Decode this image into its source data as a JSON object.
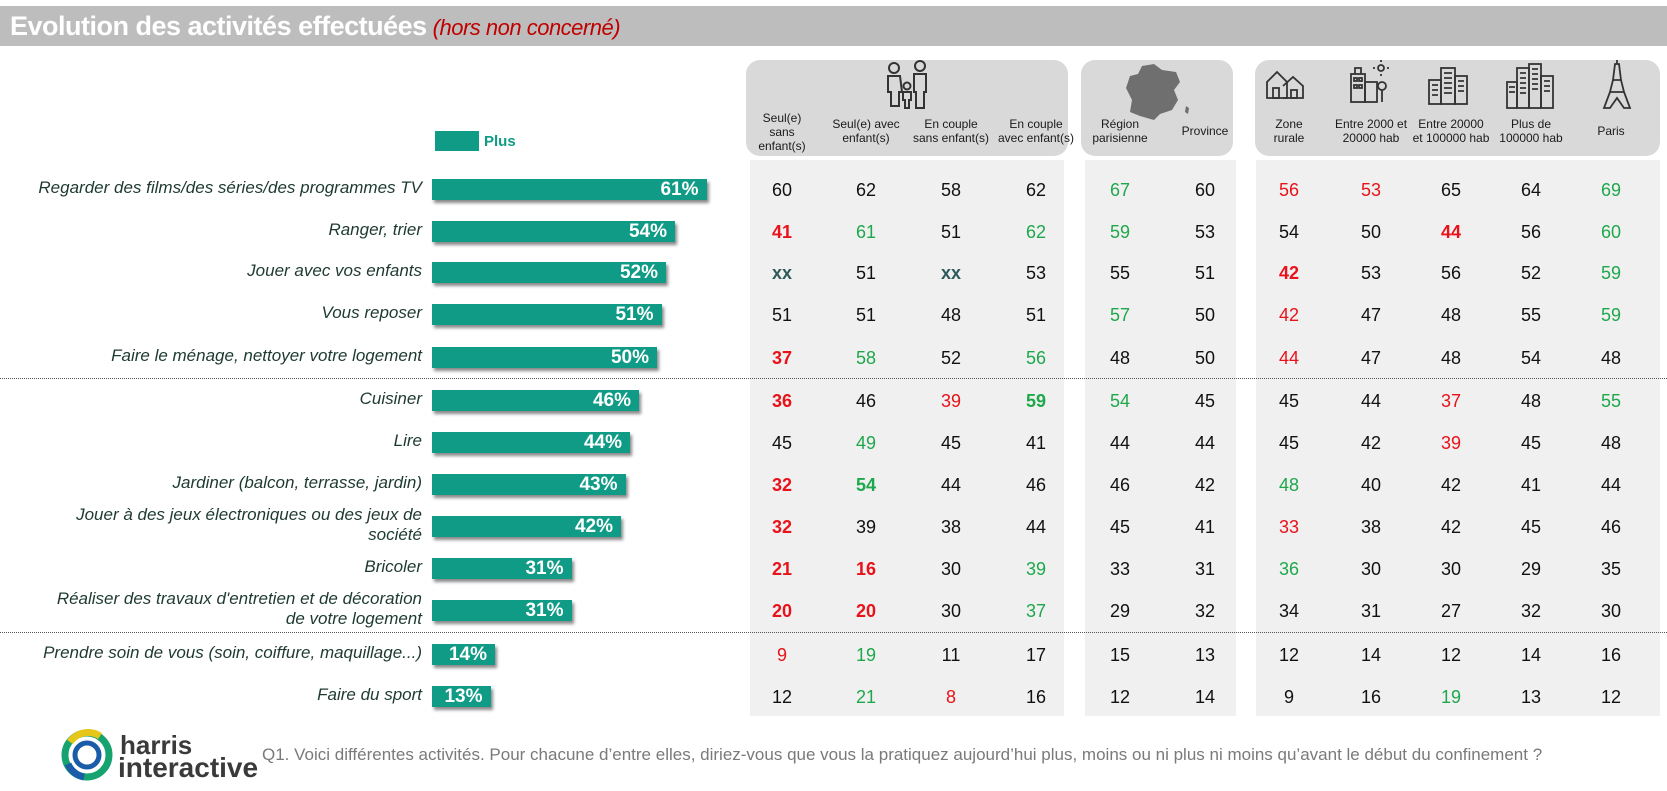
{
  "title": "Evolution des activités effectuées",
  "subtitle": "(hors non concerné)",
  "legend": {
    "label": "Plus",
    "color": "#0f9b85"
  },
  "colors": {
    "red": "#e8121a",
    "green": "#1ea84b",
    "black": "#111111",
    "bar": "#0f9b85"
  },
  "columns": [
    "Seul(e) sans enfant(s)",
    "Seul(e) avec enfant(s)",
    "En couple sans enfant(s)",
    "En couple avec enfant(s)",
    "Région parisienne",
    "Province",
    "Zone rurale",
    "Entre 2000 et 20000 hab",
    "Entre 20000 et 100000 hab",
    "Plus de 100000 hab",
    "Paris"
  ],
  "column_lines": [
    [
      "Seul(e)",
      "sans",
      "enfant(s)"
    ],
    [
      "Seul(e) avec",
      "enfant(s)"
    ],
    [
      "En couple",
      "sans enfant(s)"
    ],
    [
      "En couple",
      "avec enfant(s)"
    ],
    [
      "Région",
      "parisienne"
    ],
    [
      "Province"
    ],
    [
      "Zone",
      "rurale"
    ],
    [
      "Entre 2000 et",
      "20000 hab"
    ],
    [
      "Entre 20000",
      "et 100000 hab"
    ],
    [
      "Plus de",
      "100000 hab"
    ],
    [
      "Paris"
    ]
  ],
  "icons": [
    "family-icon",
    "france-map-icon",
    "village-icon",
    "town-icon",
    "city-icon",
    "skyscrapers-icon",
    "eiffel-tower-icon"
  ],
  "chart_data": {
    "type": "bar",
    "orientation": "horizontal",
    "title": "Evolution des activités effectuées",
    "subtitle": "(hors non concerné)",
    "series": [
      {
        "name": "Plus"
      }
    ],
    "categories": [
      "Regarder des films/des séries/des programmes TV",
      "Ranger, trier",
      "Jouer avec vos enfants",
      "Vous reposer",
      "Faire le ménage, nettoyer votre logement",
      "Cuisiner",
      "Lire",
      "Jardiner (balcon, terrasse, jardin)",
      "Jouer à des jeux électroniques ou des jeux de société",
      "Bricoler",
      "Réaliser des travaux d'entretien et de décoration de votre logement",
      "Prendre soin de vous (soin, coiffure, maquillage...)",
      "Faire du sport"
    ],
    "category_lines": [
      [
        "Regarder des films/des séries/des programmes TV"
      ],
      [
        "Ranger, trier"
      ],
      [
        "Jouer avec vos enfants"
      ],
      [
        "Vous reposer"
      ],
      [
        "Faire le ménage, nettoyer votre logement"
      ],
      [
        "Cuisiner"
      ],
      [
        "Lire"
      ],
      [
        "Jardiner (balcon, terrasse, jardin)"
      ],
      [
        "Jouer à des jeux électroniques ou des jeux de",
        "société"
      ],
      [
        "Bricoler"
      ],
      [
        "Réaliser des travaux d'entretien et de décoration",
        "de votre logement"
      ],
      [
        "Prendre soin de vous (soin, coiffure, maquillage...)"
      ],
      [
        "Faire du sport"
      ]
    ],
    "values": [
      61,
      54,
      52,
      51,
      50,
      46,
      44,
      43,
      42,
      31,
      31,
      14,
      13
    ],
    "value_labels": [
      "61%",
      "54%",
      "52%",
      "51%",
      "50%",
      "46%",
      "44%",
      "43%",
      "42%",
      "31%",
      "31%",
      "14%",
      "13%"
    ],
    "xlim": [
      0,
      100
    ],
    "table": [
      [
        "60",
        "62",
        "58",
        "62",
        "67",
        "60",
        "56",
        "53",
        "65",
        "64",
        "69"
      ],
      [
        "41",
        "61",
        "51",
        "62",
        "59",
        "53",
        "54",
        "50",
        "44",
        "56",
        "60"
      ],
      [
        "xx",
        "51",
        "xx",
        "53",
        "55",
        "51",
        "42",
        "53",
        "56",
        "52",
        "59"
      ],
      [
        "51",
        "51",
        "48",
        "51",
        "57",
        "50",
        "42",
        "47",
        "48",
        "55",
        "59"
      ],
      [
        "37",
        "58",
        "52",
        "56",
        "48",
        "50",
        "44",
        "47",
        "48",
        "54",
        "48"
      ],
      [
        "36",
        "46",
        "39",
        "59",
        "54",
        "45",
        "45",
        "44",
        "37",
        "48",
        "55"
      ],
      [
        "45",
        "49",
        "45",
        "41",
        "44",
        "44",
        "45",
        "42",
        "39",
        "45",
        "48"
      ],
      [
        "32",
        "54",
        "44",
        "46",
        "46",
        "42",
        "48",
        "40",
        "42",
        "41",
        "44"
      ],
      [
        "32",
        "39",
        "38",
        "44",
        "45",
        "41",
        "33",
        "38",
        "42",
        "45",
        "46"
      ],
      [
        "21",
        "16",
        "30",
        "39",
        "33",
        "31",
        "36",
        "30",
        "30",
        "29",
        "35"
      ],
      [
        "20",
        "20",
        "30",
        "37",
        "29",
        "32",
        "34",
        "31",
        "27",
        "32",
        "30"
      ],
      [
        "9",
        "19",
        "11",
        "17",
        "15",
        "13",
        "12",
        "14",
        "12",
        "14",
        "16"
      ],
      [
        "12",
        "21",
        "8",
        "16",
        "12",
        "14",
        "9",
        "16",
        "19",
        "13",
        "12"
      ]
    ],
    "table_colors": [
      [
        "k",
        "k",
        "k",
        "k",
        "g",
        "k",
        "r",
        "r",
        "k",
        "k",
        "g"
      ],
      [
        "R",
        "g",
        "k",
        "g",
        "g",
        "k",
        "k",
        "k",
        "R",
        "k",
        "g"
      ],
      [
        "x",
        "k",
        "x",
        "k",
        "k",
        "k",
        "R",
        "k",
        "k",
        "k",
        "g"
      ],
      [
        "k",
        "k",
        "k",
        "k",
        "g",
        "k",
        "r",
        "k",
        "k",
        "k",
        "g"
      ],
      [
        "R",
        "g",
        "k",
        "g",
        "k",
        "k",
        "r",
        "k",
        "k",
        "k",
        "k"
      ],
      [
        "R",
        "k",
        "r",
        "G",
        "g",
        "k",
        "k",
        "k",
        "r",
        "k",
        "g"
      ],
      [
        "k",
        "g",
        "k",
        "k",
        "k",
        "k",
        "k",
        "k",
        "r",
        "k",
        "k"
      ],
      [
        "R",
        "G",
        "k",
        "k",
        "k",
        "k",
        "g",
        "k",
        "k",
        "k",
        "k"
      ],
      [
        "R",
        "k",
        "k",
        "k",
        "k",
        "k",
        "r",
        "k",
        "k",
        "k",
        "k"
      ],
      [
        "R",
        "R",
        "k",
        "g",
        "k",
        "k",
        "g",
        "k",
        "k",
        "k",
        "k"
      ],
      [
        "R",
        "R",
        "k",
        "g",
        "k",
        "k",
        "k",
        "k",
        "k",
        "k",
        "k"
      ],
      [
        "r",
        "g",
        "k",
        "k",
        "k",
        "k",
        "k",
        "k",
        "k",
        "k",
        "k"
      ],
      [
        "k",
        "g",
        "r",
        "k",
        "k",
        "k",
        "k",
        "k",
        "g",
        "k",
        "k"
      ]
    ]
  },
  "question": "Q1. Voici différentes activités. Pour chacune d’entre elles, diriez-vous que vous la pratiquez aujourd’hui plus, moins ou ni plus ni moins qu’avant le début du confinement ?",
  "logo": {
    "line1": "harris",
    "line2": "interactive"
  }
}
